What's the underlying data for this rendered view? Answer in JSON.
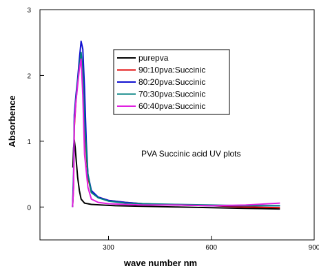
{
  "chart_data": {
    "type": "line",
    "title": "",
    "annotation": "PVA Succinic acid UV plots",
    "xlabel": "wave number nm",
    "ylabel": "Absorbence",
    "xlim": [
      100,
      900
    ],
    "ylim": [
      -0.5,
      3
    ],
    "x_ticks": [
      300,
      600,
      900
    ],
    "y_ticks": [
      0,
      1,
      2,
      3
    ],
    "grid": false,
    "legend_position": "top-center",
    "series": [
      {
        "name": "purepva",
        "color": "#000000",
        "x": [
          196,
          198,
          200,
          203,
          206,
          210,
          215,
          220,
          230,
          250,
          280,
          320,
          400,
          500,
          600,
          700,
          800
        ],
        "y": [
          0.6,
          0.9,
          1.02,
          0.9,
          0.7,
          0.45,
          0.25,
          0.12,
          0.06,
          0.04,
          0.03,
          0.02,
          0.01,
          0.0,
          -0.01,
          -0.02,
          -0.03
        ]
      },
      {
        "name": "90:10pva:Succinic",
        "color": "#e00000",
        "x": [
          195,
          198,
          200,
          205,
          210,
          215,
          220,
          225,
          230,
          240,
          250,
          270,
          300,
          350,
          400,
          500,
          600,
          700,
          800
        ],
        "y": [
          0.0,
          0.3,
          1.2,
          1.6,
          1.9,
          2.15,
          2.3,
          2.0,
          1.2,
          0.45,
          0.22,
          0.15,
          0.1,
          0.07,
          0.05,
          0.03,
          0.02,
          0.0,
          -0.01
        ]
      },
      {
        "name": "80:20pva:Succinic",
        "color": "#1010d0",
        "x": [
          195,
          198,
          200,
          205,
          210,
          215,
          220,
          225,
          230,
          235,
          240,
          250,
          270,
          300,
          350,
          400,
          500,
          600,
          700,
          800
        ],
        "y": [
          0.0,
          0.5,
          1.4,
          1.7,
          1.95,
          2.25,
          2.52,
          2.4,
          1.8,
          1.0,
          0.5,
          0.25,
          0.15,
          0.1,
          0.07,
          0.05,
          0.03,
          0.02,
          0.02,
          0.02
        ]
      },
      {
        "name": "70:30pva:Succinic",
        "color": "#008080",
        "x": [
          195,
          198,
          200,
          205,
          210,
          215,
          220,
          225,
          230,
          240,
          250,
          270,
          300,
          350,
          400,
          500,
          600,
          700,
          800
        ],
        "y": [
          0.0,
          0.4,
          1.3,
          1.65,
          1.9,
          2.15,
          2.35,
          2.1,
          1.3,
          0.5,
          0.22,
          0.14,
          0.09,
          0.06,
          0.05,
          0.04,
          0.03,
          0.02,
          0.02
        ]
      },
      {
        "name": "60:40pva:Succinic",
        "color": "#e020e0",
        "x": [
          195,
          198,
          200,
          205,
          210,
          215,
          220,
          225,
          230,
          240,
          250,
          270,
          300,
          350,
          400,
          500,
          600,
          700,
          800
        ],
        "y": [
          0.0,
          0.3,
          1.25,
          1.6,
          1.85,
          2.1,
          2.25,
          1.7,
          0.8,
          0.3,
          0.12,
          0.07,
          0.05,
          0.04,
          0.03,
          0.03,
          0.02,
          0.03,
          0.06
        ]
      }
    ]
  }
}
